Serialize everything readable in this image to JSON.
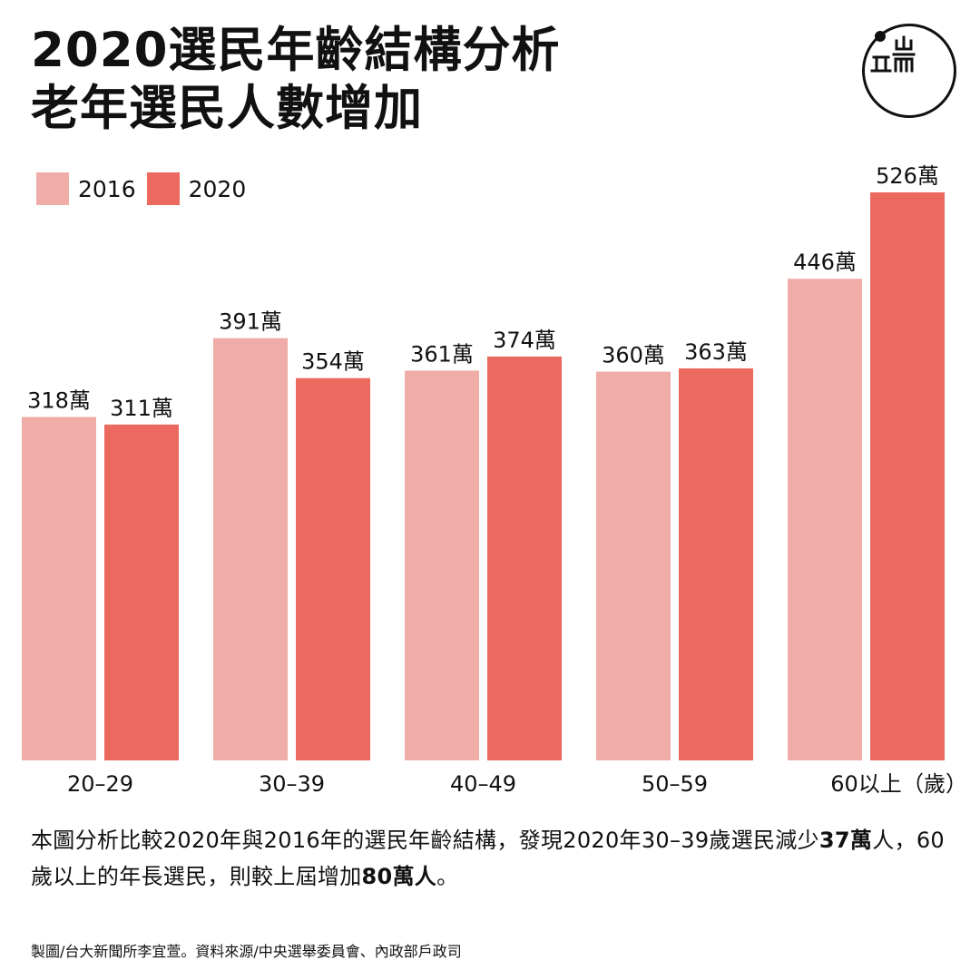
{
  "title": {
    "line1": "2020選民年齡結構分析",
    "line2": "老年選民人數增加"
  },
  "logo": {
    "name": "端",
    "colors": {
      "stroke": "#111111"
    }
  },
  "colors": {
    "series_2016": "#f0aca7",
    "series_2020": "#ec6960",
    "text": "#111111"
  },
  "description": {
    "part1": "本圖分析比較2020年與2016年的選民年齡結構，發現2020年30–39歲選民減少",
    "bold1": "37萬",
    "part2": "人，60歲以上的年長選民，則較上屆增加",
    "bold2": "80萬人",
    "part3": "。"
  },
  "credit": "製圖/台大新聞所李宜萱。資料來源/中央選舉委員會、內政部戶政司",
  "chart_data": {
    "type": "bar",
    "categories": [
      "20–29",
      "30–39",
      "40–49",
      "50–59",
      "60以上"
    ],
    "x_unit": "（歲）",
    "value_suffix": "萬",
    "series": [
      {
        "name": "2016",
        "values": [
          318,
          391,
          361,
          360,
          446
        ]
      },
      {
        "name": "2020",
        "values": [
          311,
          354,
          374,
          363,
          526
        ]
      }
    ],
    "title": "",
    "xlabel": "",
    "ylabel": "",
    "ylim": [
      0,
      526
    ],
    "grid": false,
    "legend": "top-left"
  }
}
